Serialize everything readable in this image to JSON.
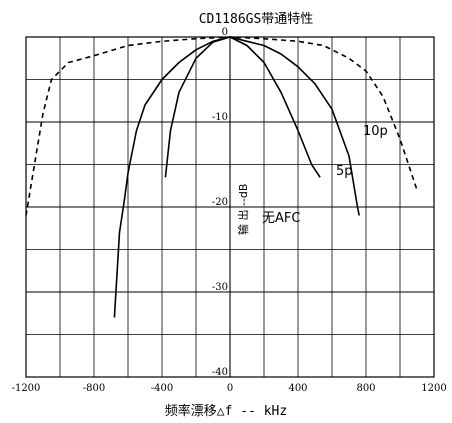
{
  "chart_data": {
    "type": "line",
    "title": "CD1186GS带通特性",
    "xlabel": "频率漂移△f    -- kHz",
    "ylabel": "输 出  --dB",
    "xlim": [
      -1200,
      1200
    ],
    "ylim": [
      -40,
      0
    ],
    "grid": true,
    "x_ticks": [
      "-1200",
      "-800",
      "-400",
      "0",
      "400",
      "800",
      "1200"
    ],
    "y_ticks": [
      "0",
      "-10",
      "-20",
      "-30",
      "-40"
    ],
    "series": [
      {
        "name": "10p",
        "style": "dashed",
        "label": "10p",
        "points": [
          [
            -1200,
            -21
          ],
          [
            -1150,
            -15
          ],
          [
            -1100,
            -9
          ],
          [
            -1050,
            -5
          ],
          [
            -950,
            -3
          ],
          [
            -800,
            -2.2
          ],
          [
            -600,
            -1
          ],
          [
            -400,
            -0.5
          ],
          [
            -200,
            -0.2
          ],
          [
            0,
            0
          ],
          [
            200,
            -0.2
          ],
          [
            400,
            -0.5
          ],
          [
            550,
            -1
          ],
          [
            700,
            -2.5
          ],
          [
            800,
            -4
          ],
          [
            900,
            -7
          ],
          [
            1000,
            -12
          ],
          [
            1050,
            -15
          ],
          [
            1100,
            -18
          ]
        ]
      },
      {
        "name": "5p",
        "style": "solid",
        "label": "5p",
        "points": [
          [
            -680,
            -33
          ],
          [
            -650,
            -23
          ],
          [
            -620,
            -19
          ],
          [
            -600,
            -16
          ],
          [
            -550,
            -11
          ],
          [
            -500,
            -8
          ],
          [
            -400,
            -5
          ],
          [
            -300,
            -3
          ],
          [
            -200,
            -1.5
          ],
          [
            -100,
            -0.5
          ],
          [
            0,
            0
          ],
          [
            100,
            -0.5
          ],
          [
            200,
            -1
          ],
          [
            300,
            -2
          ],
          [
            400,
            -3.5
          ],
          [
            500,
            -5.5
          ],
          [
            600,
            -8.5
          ],
          [
            700,
            -14
          ],
          [
            750,
            -20
          ],
          [
            760,
            -21
          ]
        ]
      },
      {
        "name": "无AFC",
        "style": "solid",
        "label": "无AFC",
        "points": [
          [
            -380,
            -16.5
          ],
          [
            -350,
            -11
          ],
          [
            -300,
            -6.5
          ],
          [
            -200,
            -2.5
          ],
          [
            -100,
            -0.6
          ],
          [
            0,
            0
          ],
          [
            100,
            -1
          ],
          [
            200,
            -3
          ],
          [
            300,
            -6.5
          ],
          [
            400,
            -11
          ],
          [
            480,
            -15
          ],
          [
            530,
            -16.5
          ]
        ]
      }
    ]
  }
}
